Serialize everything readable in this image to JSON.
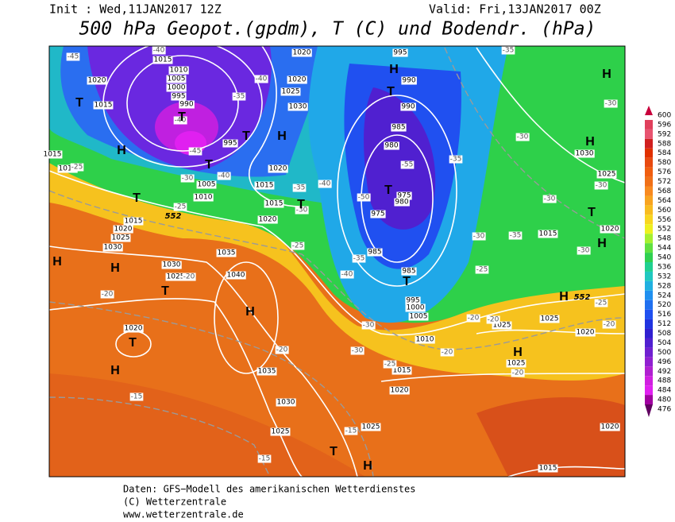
{
  "header": {
    "init": "Init : Wed,11JAN2017 12Z",
    "valid": "Valid: Fri,13JAN2017 00Z",
    "title": "500 hPa Geopot.(gpdm), T (C) und Bodendr. (hPa)"
  },
  "colorbar": {
    "ticks": [
      600,
      596,
      592,
      588,
      584,
      580,
      576,
      572,
      568,
      564,
      560,
      556,
      552,
      548,
      544,
      540,
      536,
      532,
      528,
      524,
      520,
      516,
      512,
      508,
      504,
      500,
      496,
      492,
      488,
      484,
      480,
      476
    ]
  },
  "map": {
    "pressure_labels": [
      "1015",
      "1020",
      "1010",
      "1005",
      "1000",
      "995",
      "990",
      "1015",
      "1015",
      "1010",
      "1005",
      "1010",
      "995",
      "1020",
      "1020",
      "1025",
      "1030",
      "1020",
      "1015",
      "1015",
      "1020",
      "1015",
      "1020",
      "1025",
      "1030",
      "995",
      "990",
      "990",
      "985",
      "980",
      "975",
      "980",
      "975",
      "985",
      "985",
      "995",
      "1000",
      "1005",
      "1010",
      "1015",
      "1020",
      "1025",
      "1035",
      "1030",
      "1025",
      "1040",
      "1035",
      "1030",
      "1025",
      "1020",
      "1015",
      "1020",
      "1025",
      "1030",
      "1025",
      "1025",
      "1020",
      "1025",
      "1020",
      "1015"
    ],
    "temperature_labels": [
      "-45",
      "-40",
      "-35",
      "-40",
      "-40",
      "-45",
      "-40",
      "-30",
      "-25",
      "-25",
      "-30",
      "-35",
      "-40",
      "-50",
      "-55",
      "-35",
      "-30",
      "-30",
      "-35",
      "-30",
      "-35",
      "-30",
      "-30",
      "-30",
      "-25",
      "-25",
      "-40",
      "-35",
      "-30",
      "-30",
      "-25",
      "-20",
      "-20",
      "-20",
      "-25",
      "-20",
      "-20",
      "-20",
      "-20",
      "-20",
      "-15",
      "-15",
      "-15"
    ],
    "centers": [
      "T",
      "T",
      "T",
      "H",
      "T",
      "T",
      "H",
      "H",
      "T",
      "H",
      "T",
      "H",
      "H",
      "T",
      "T",
      "T",
      "H",
      "T",
      "H",
      "H",
      "T",
      "H",
      "H",
      "H",
      "T",
      "H"
    ],
    "isohypse_labels": [
      "552",
      "552"
    ]
  },
  "footer": {
    "lines": [
      "Daten: GFS−Modell des amerikanischen Wetterdienstes",
      "(C) Wetterzentrale",
      "www.wetterzentrale.de"
    ]
  }
}
